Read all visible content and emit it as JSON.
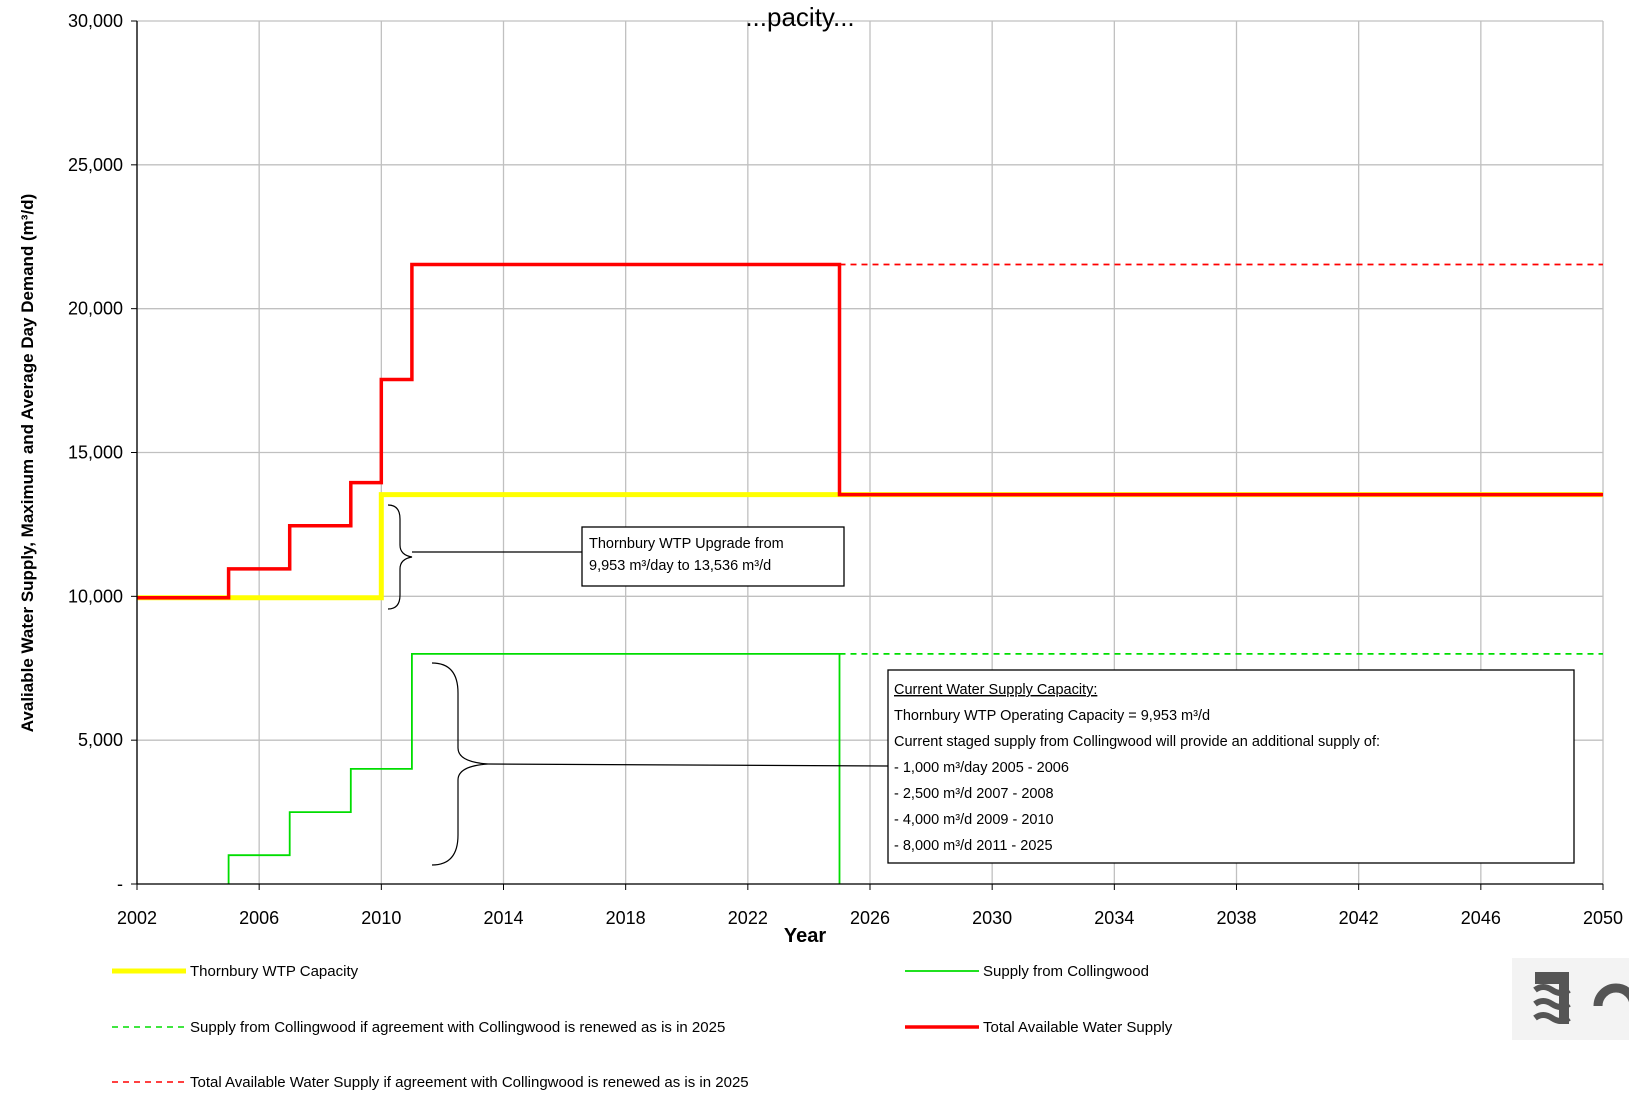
{
  "chart_data": {
    "type": "line",
    "title": "...pacity...",
    "xlabel": "Year",
    "ylabel": "Avaliable Water Supply, Maximum and Average Day Demand (m³/d)",
    "xlim": [
      2002,
      2050
    ],
    "ylim": [
      0,
      30000
    ],
    "x_ticks": [
      "2002",
      "2006",
      "2010",
      "2014",
      "2018",
      "2022",
      "2026",
      "2030",
      "2034",
      "2038",
      "2042",
      "2046",
      "2050"
    ],
    "y_ticks": [
      {
        "value": 0,
        "label": "-"
      },
      {
        "value": 5000,
        "label": "5,000"
      },
      {
        "value": 10000,
        "label": "10,000"
      },
      {
        "value": 15000,
        "label": "15,000"
      },
      {
        "value": 20000,
        "label": "20,000"
      },
      {
        "value": 25000,
        "label": "25,000"
      },
      {
        "value": 30000,
        "label": "30,000"
      }
    ],
    "grid": true,
    "series": [
      {
        "name": "Thornbury WTP Capacity",
        "color": "#ffff00",
        "style": "solid",
        "width": "thick",
        "points": [
          [
            2002,
            9953
          ],
          [
            2010,
            9953
          ],
          [
            2010,
            13536
          ],
          [
            2050,
            13536
          ]
        ]
      },
      {
        "name": "Supply from Collingwood",
        "color": "#00dd00",
        "style": "solid",
        "width": "thin",
        "points": [
          [
            2005,
            0
          ],
          [
            2005,
            1000
          ],
          [
            2007,
            1000
          ],
          [
            2007,
            2500
          ],
          [
            2009,
            2500
          ],
          [
            2009,
            4000
          ],
          [
            2011,
            4000
          ],
          [
            2011,
            8000
          ],
          [
            2025,
            8000
          ],
          [
            2025,
            0
          ]
        ]
      },
      {
        "name": "Supply from Collingwood if agreement with Collingwood is renewed as is in 2025",
        "color": "#00dd00",
        "style": "dashed",
        "width": "thin",
        "points": [
          [
            2025,
            8000
          ],
          [
            2050,
            8000
          ]
        ]
      },
      {
        "name": "Total Available Water Supply",
        "color": "#ff0000",
        "style": "solid",
        "width": "medium",
        "points": [
          [
            2002,
            9953
          ],
          [
            2005,
            9953
          ],
          [
            2005,
            10953
          ],
          [
            2007,
            10953
          ],
          [
            2007,
            12453
          ],
          [
            2009,
            12453
          ],
          [
            2009,
            13953
          ],
          [
            2010,
            13953
          ],
          [
            2010,
            17536
          ],
          [
            2011,
            17536
          ],
          [
            2011,
            21536
          ],
          [
            2025,
            21536
          ],
          [
            2025,
            13536
          ],
          [
            2050,
            13536
          ]
        ]
      },
      {
        "name": "Total Available Water Supply if agreement with Collingwood is renewed as is in 2025",
        "color": "#ff0000",
        "style": "dashed",
        "width": "thin",
        "points": [
          [
            2025,
            21536
          ],
          [
            2050,
            21536
          ]
        ]
      }
    ],
    "annotations": {
      "upgrade": {
        "lines": [
          "Thornbury WTP Upgrade from",
          "9,953 m³/day to 13,536 m³/d"
        ]
      },
      "current": {
        "heading": "Current Water Supply Capacity:",
        "lines": [
          "Thornbury WTP Operating Capacity = 9,953 m³/d",
          "Current staged supply from Collingwood will provide an additional supply of:",
          "- 1,000 m³/day 2005 - 2006",
          "- 2,500 m³/d 2007 - 2008",
          "- 4,000 m³/d 2009 - 2010",
          "- 8,000 m³/d 2011 - 2025"
        ]
      }
    },
    "legend": [
      {
        "label": "Thornbury WTP Capacity",
        "color": "#ffff00",
        "style": "solid"
      },
      {
        "label": "Supply from Collingwood",
        "color": "#00dd00",
        "style": "solid"
      },
      {
        "label": "Supply from Collingwood if agreement with Collingwood is renewed as is in 2025",
        "color": "#00dd00",
        "style": "dashed"
      },
      {
        "label": "Total Available Water Supply",
        "color": "#ff0000",
        "style": "solid"
      },
      {
        "label": "Total Available Water Supply if agreement with Collingwood is renewed as is in 2025",
        "color": "#ff0000",
        "style": "dashed"
      }
    ],
    "legend_position": "bottom"
  },
  "colors": {
    "grid": "#c0c0c0",
    "logo": "#555555"
  },
  "icons": {
    "logo": "water-waves-logo-icon"
  }
}
